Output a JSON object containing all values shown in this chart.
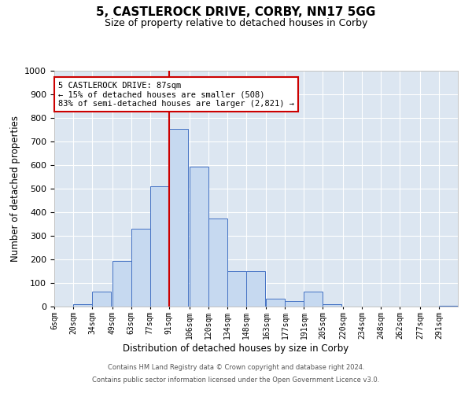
{
  "title": "5, CASTLEROCK DRIVE, CORBY, NN17 5GG",
  "subtitle": "Size of property relative to detached houses in Corby",
  "xlabel": "Distribution of detached houses by size in Corby",
  "ylabel": "Number of detached properties",
  "bar_color": "#c6d9f0",
  "bar_edge_color": "#4472c4",
  "bg_color": "#dce6f1",
  "grid_color": "#ffffff",
  "annotation_text": "5 CASTLEROCK DRIVE: 87sqm\n← 15% of detached houses are smaller (508)\n83% of semi-detached houses are larger (2,821) →",
  "vline_color": "#cc0000",
  "annotation_box_edgecolor": "#cc0000",
  "categories": [
    "6sqm",
    "20sqm",
    "34sqm",
    "49sqm",
    "63sqm",
    "77sqm",
    "91sqm",
    "106sqm",
    "120sqm",
    "134sqm",
    "148sqm",
    "163sqm",
    "177sqm",
    "191sqm",
    "205sqm",
    "220sqm",
    "234sqm",
    "248sqm",
    "262sqm",
    "277sqm",
    "291sqm"
  ],
  "bin_starts": [
    6,
    20,
    34,
    49,
    63,
    77,
    91,
    106,
    120,
    134,
    148,
    163,
    177,
    191,
    205,
    220,
    234,
    248,
    262,
    277,
    291
  ],
  "bin_width": 14,
  "values": [
    0,
    10,
    65,
    195,
    330,
    510,
    755,
    595,
    375,
    150,
    150,
    35,
    25,
    65,
    10,
    0,
    0,
    0,
    0,
    0,
    5
  ],
  "ylim": [
    0,
    1000
  ],
  "yticks": [
    0,
    100,
    200,
    300,
    400,
    500,
    600,
    700,
    800,
    900,
    1000
  ],
  "vline_pos": 91,
  "footer1": "Contains HM Land Registry data © Crown copyright and database right 2024.",
  "footer2": "Contains public sector information licensed under the Open Government Licence v3.0."
}
